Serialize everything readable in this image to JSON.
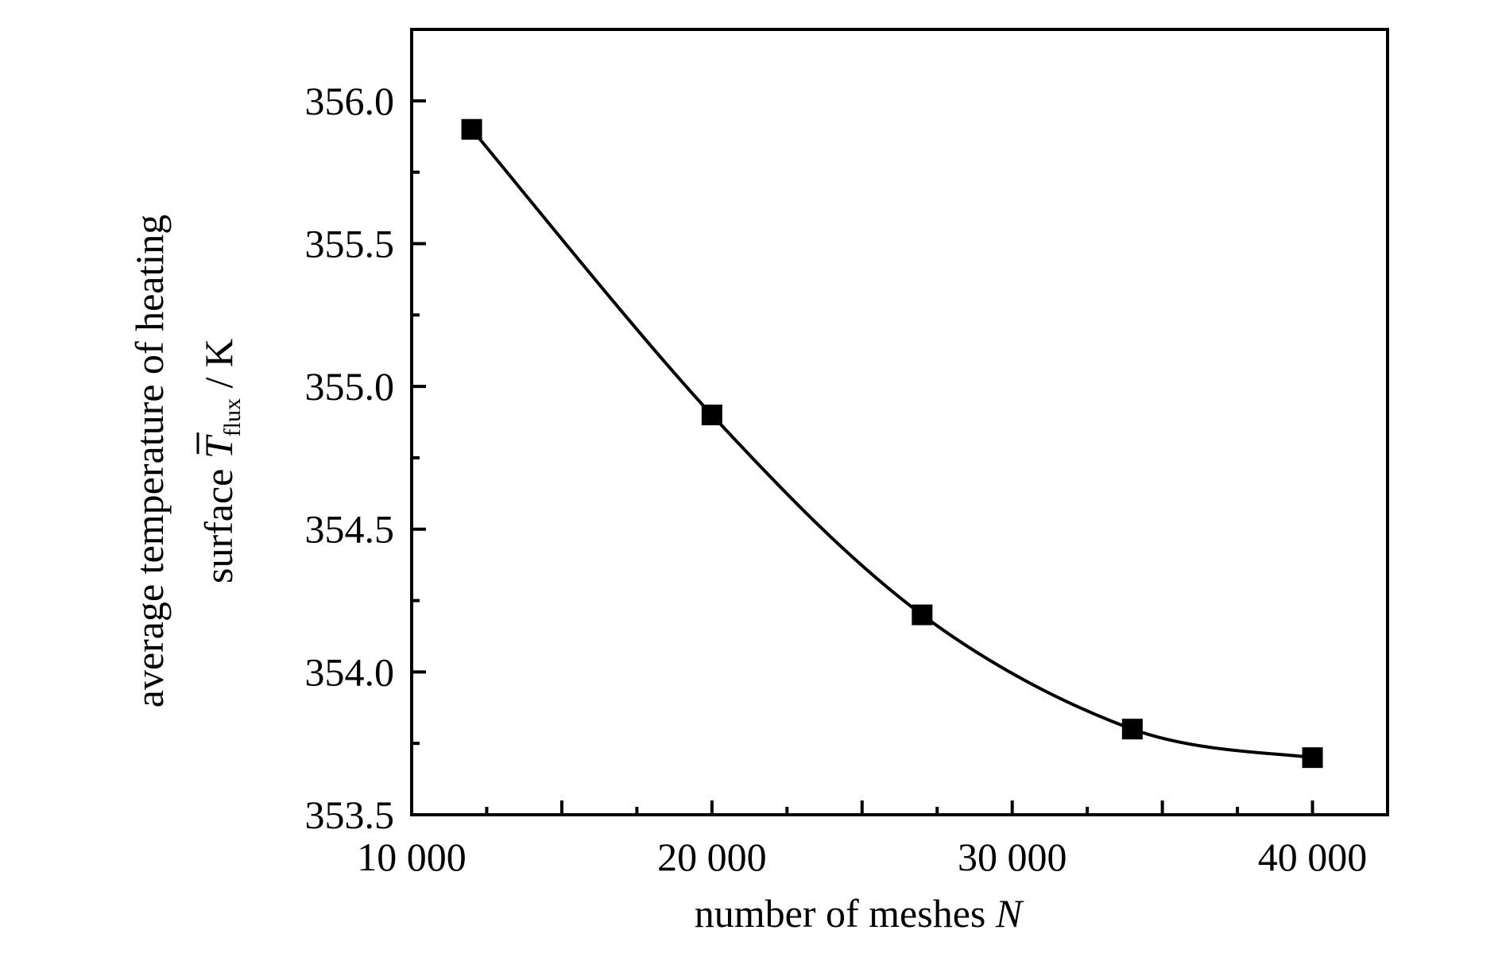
{
  "chart_data": {
    "type": "line",
    "xlabel": {
      "text": "number of meshes ",
      "var": "N"
    },
    "ylabel": {
      "line1": "average temperature of heating",
      "line2_prefix": "surface ",
      "symbol": "T",
      "subscript": "flux",
      "unit": " / K"
    },
    "xlim": [
      10000,
      42500
    ],
    "ylim": [
      353.5,
      356.25
    ],
    "x_ticks": [
      10000,
      20000,
      30000,
      40000
    ],
    "x_tick_labels": [
      "10 000",
      "20 000",
      "30 000",
      "40 000"
    ],
    "y_ticks": [
      353.5,
      354.0,
      354.5,
      355.0,
      355.5,
      356.0
    ],
    "y_tick_labels": [
      "353.5",
      "354.0",
      "354.5",
      "355.0",
      "355.5",
      "356.0"
    ],
    "series": [
      {
        "x": [
          12000,
          20000,
          27000,
          34000,
          40000
        ],
        "y": [
          355.9,
          354.9,
          354.2,
          353.8,
          353.7
        ],
        "marker": "square",
        "color": "#000000"
      }
    ],
    "grid": false,
    "legend": "none"
  }
}
